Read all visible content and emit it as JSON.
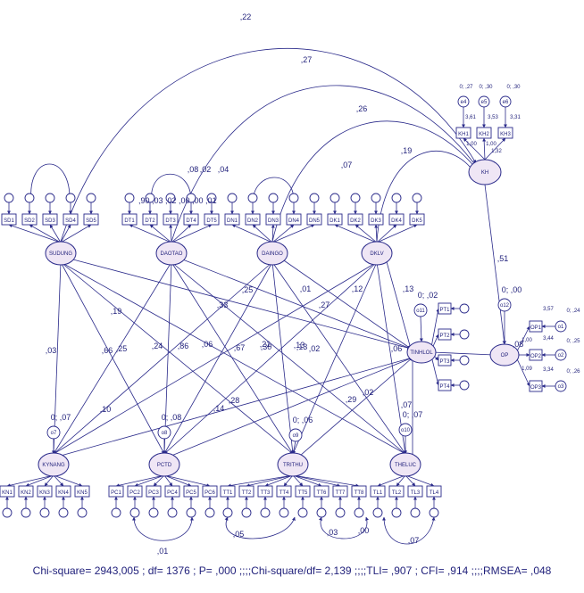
{
  "diagram": {
    "fit_line": "Chi-square= 2943,005 ; df= 1376 ; P= ,000 ;;;;Chi-square/df= 2,139 ;;;;TLI= ,907 ; CFI= ,914 ;;;;RMSEA= ,048",
    "latent": [
      {
        "id": "SUDUNG",
        "label": "SUDUNG"
      },
      {
        "id": "DAOTAO",
        "label": "DAOTAO"
      },
      {
        "id": "DAINGO",
        "label": "DAINGO"
      },
      {
        "id": "DKLV",
        "label": "DKLV"
      },
      {
        "id": "KH",
        "label": "KH"
      },
      {
        "id": "TINHLOL",
        "label": "TINHLOL"
      },
      {
        "id": "OP",
        "label": "OP"
      },
      {
        "id": "KYNANG",
        "label": "KYNANG"
      },
      {
        "id": "PCTD",
        "label": "PCTD"
      },
      {
        "id": "TRITHUC",
        "label": "TRITHU"
      },
      {
        "id": "THELUC",
        "label": "THELUC"
      }
    ],
    "top_indicators": [
      "SD1",
      "SD2",
      "SD3",
      "SD4",
      "SD5",
      "DT1",
      "DT2",
      "DT3",
      "DT4",
      "DT5",
      "DN1",
      "DN2",
      "DN3",
      "DN4",
      "DN5",
      "DK1",
      "DK2",
      "DK3",
      "DK4",
      "DK5"
    ],
    "kh_indicators": [
      "KH1",
      "KH2",
      "KH3"
    ],
    "kh_errors": [
      "e4",
      "e5",
      "e6"
    ],
    "kh_labels": [
      "0; ,27",
      "0; ,30",
      "0; ,30",
      "3,61",
      "3,53",
      "3,31",
      "1,00",
      "1,00",
      "1,32"
    ],
    "tn_indicators": [
      "PT1",
      "PT2",
      "PT3",
      "PT4"
    ],
    "op_indicators": [
      "OP1",
      "OP2",
      "OP3"
    ],
    "op_errors": [
      "o1",
      "o2",
      "o3"
    ],
    "op_labels": [
      "3,57",
      "3,44",
      "3,34",
      "0; ,24",
      "0; ,25",
      "0; ,26",
      "1,00",
      "1,09"
    ],
    "bottom_indicators": [
      "KN1",
      "KN2",
      "KN3",
      "KN4",
      "KN5",
      "PC1",
      "PC2",
      "PC3",
      "PC4",
      "PC5",
      "PC6",
      "TT1",
      "TT2",
      "TT3",
      "TT4",
      "TT5",
      "TT6",
      "TT7",
      "TT8",
      "TL1",
      "TL2",
      "TL3",
      "TL4"
    ],
    "disturbances": [
      "o7",
      "o8",
      "o9",
      "o10",
      "o11",
      "o12"
    ],
    "dist_labels": [
      "0; ,07",
      "0; ,08",
      "0; ,06",
      "0; ,07",
      "0; ,02",
      "0; ,00"
    ],
    "curve_coefs": [
      ",22",
      ",27",
      ",26",
      ",19",
      ",51",
      ",08",
      ",13"
    ],
    "path_coefs": [
      ",03",
      ",66",
      ",25",
      ",24",
      ",86",
      ",06",
      ",67",
      ",21",
      ",13",
      ",02",
      ",29",
      ",33",
      ",25",
      ",13",
      ",12",
      ",27",
      ",01",
      ",19",
      ",28",
      ",14",
      ",30",
      ",10",
      ",07",
      ",06",
      ",02",
      ",05",
      ",03",
      ",00",
      ",07",
      ",01",
      ",08",
      ",02",
      ",04",
      ",07"
    ],
    "overlap_text": ",90 ,03 ,02 ,00 ,00 ,01"
  }
}
